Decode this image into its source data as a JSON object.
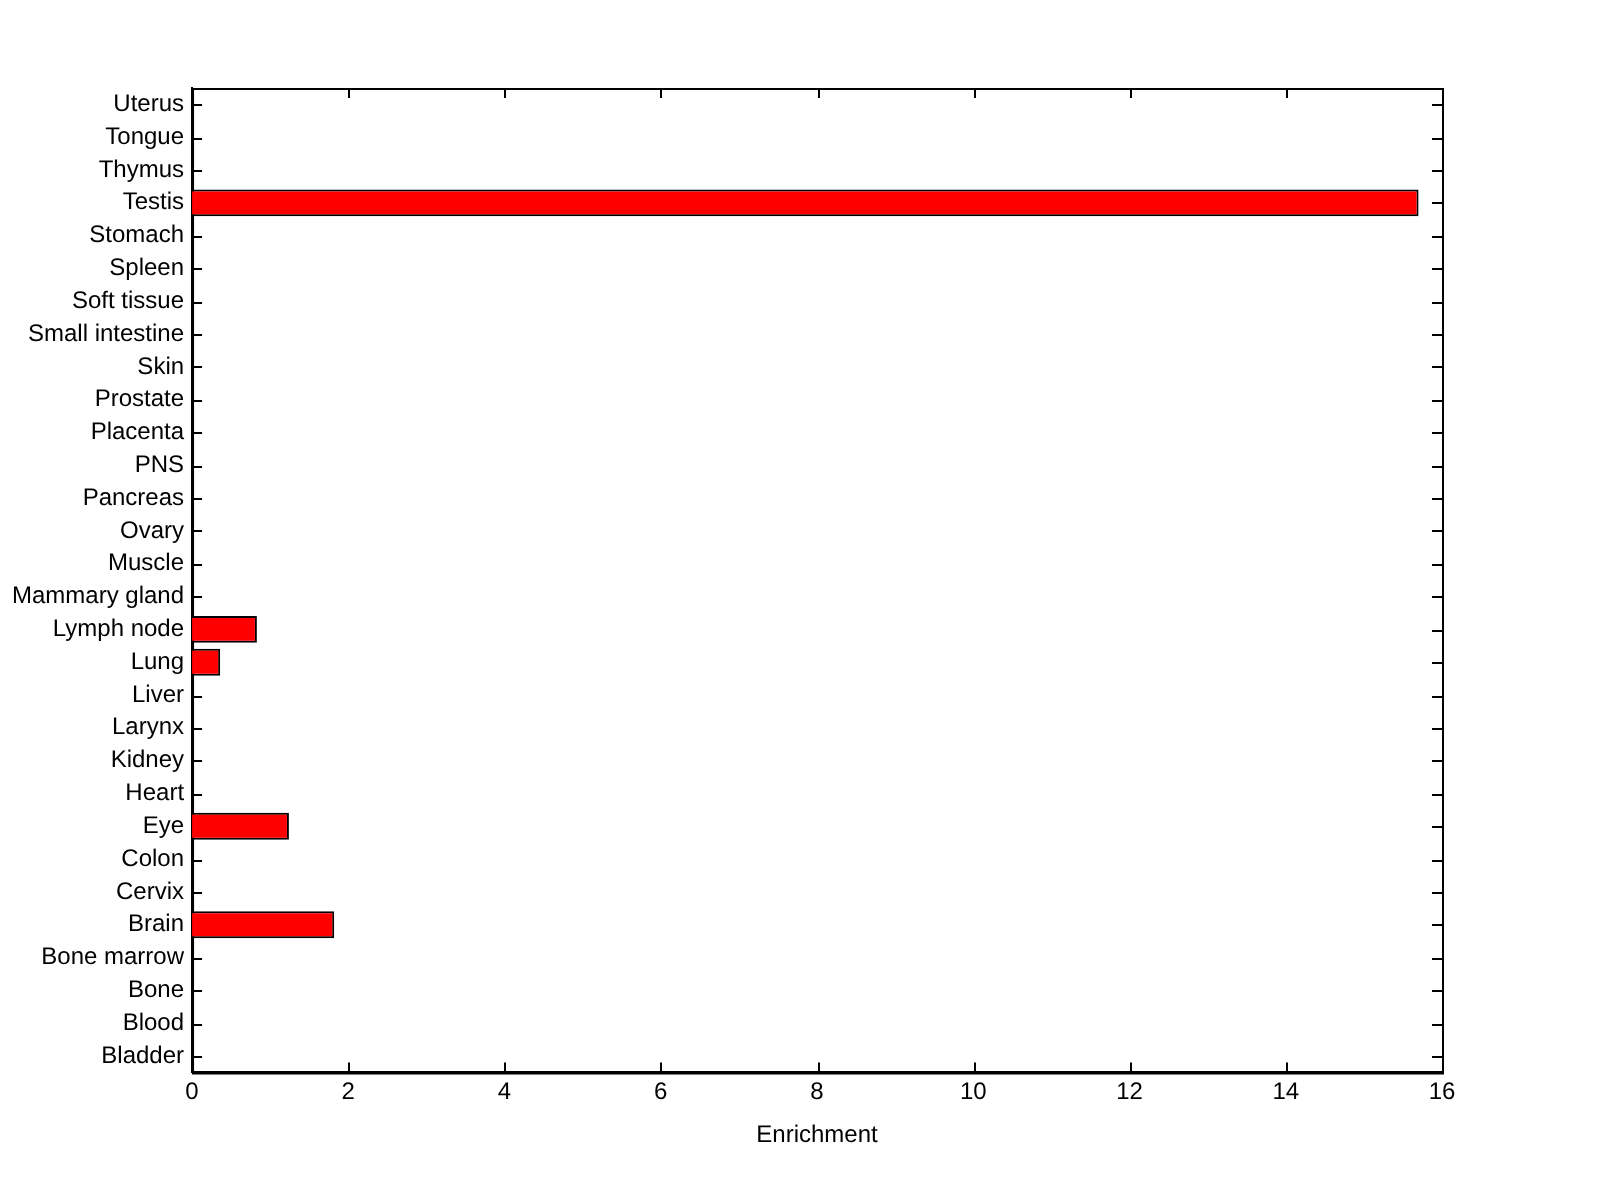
{
  "chart_data": {
    "type": "bar",
    "orientation": "horizontal",
    "xlabel": "Enrichment",
    "categories": [
      "Uterus",
      "Tongue",
      "Thymus",
      "Testis",
      "Stomach",
      "Spleen",
      "Soft tissue",
      "Small intestine",
      "Skin",
      "Prostate",
      "Placenta",
      "PNS",
      "Pancreas",
      "Ovary",
      "Muscle",
      "Mammary gland",
      "Lymph node",
      "Lung",
      "Liver",
      "Larynx",
      "Kidney",
      "Heart",
      "Eye",
      "Colon",
      "Cervix",
      "Brain",
      "Bone marrow",
      "Bone",
      "Blood",
      "Bladder"
    ],
    "values": [
      0,
      0,
      0,
      15.7,
      0,
      0,
      0,
      0,
      0,
      0,
      0,
      0,
      0,
      0,
      0,
      0,
      0.83,
      0.36,
      0,
      0,
      0,
      0,
      1.24,
      0,
      0,
      1.82,
      0,
      0,
      0,
      0
    ],
    "color": "#ff0000",
    "xlim": [
      0,
      16
    ],
    "xticks": [
      0,
      2,
      4,
      6,
      8,
      10,
      12,
      14,
      16
    ],
    "grid": false,
    "legend": false
  }
}
